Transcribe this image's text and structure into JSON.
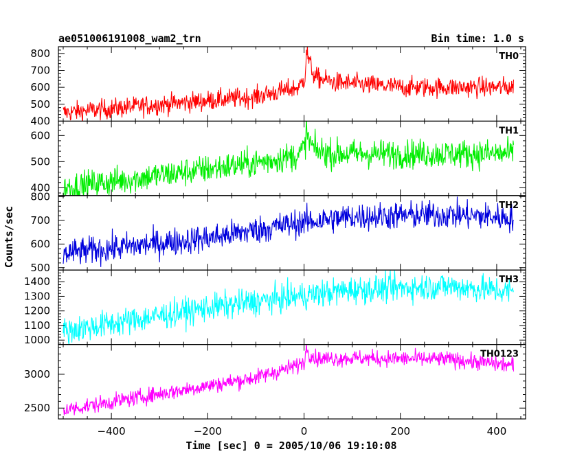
{
  "header": {
    "title": "ae051006191008_wam2_trn",
    "bin_time": "Bin time: 1.0 s"
  },
  "chart_data": {
    "type": "line",
    "xlabel": "Time [sec] 0 = 2005/10/06 19:10:08",
    "ylabel": "Counts/sec",
    "xlim": [
      -510,
      460
    ],
    "x_ticks": [
      -400,
      -200,
      0,
      200,
      400
    ],
    "x_range_data": [
      -500,
      435
    ],
    "panels": [
      {
        "name": "TH0",
        "color": "#ff0000",
        "ylim": [
          400,
          840
        ],
        "y_ticks": [
          400,
          500,
          600,
          700,
          800
        ],
        "profile": [
          [
            -500,
            450
          ],
          [
            -100,
            545
          ],
          [
            -10,
            600
          ],
          [
            2,
            660
          ],
          [
            5,
            820
          ],
          [
            10,
            760
          ],
          [
            22,
            660
          ],
          [
            60,
            630
          ],
          [
            200,
            600
          ],
          [
            435,
            600
          ]
        ],
        "noise": 30
      },
      {
        "name": "TH1",
        "color": "#00ee00",
        "ylim": [
          370,
          655
        ],
        "y_ticks": [
          400,
          500,
          600
        ],
        "profile": [
          [
            -500,
            400
          ],
          [
            -100,
            495
          ],
          [
            -10,
            525
          ],
          [
            2,
            560
          ],
          [
            5,
            620
          ],
          [
            10,
            580
          ],
          [
            22,
            545
          ],
          [
            60,
            530
          ],
          [
            200,
            530
          ],
          [
            435,
            530
          ]
        ],
        "noise": 28
      },
      {
        "name": "TH2",
        "color": "#0000dd",
        "ylim": [
          490,
          805
        ],
        "y_ticks": [
          500,
          600,
          700,
          800
        ],
        "profile": [
          [
            -500,
            560
          ],
          [
            -200,
            625
          ],
          [
            -10,
            690
          ],
          [
            100,
            715
          ],
          [
            300,
            725
          ],
          [
            435,
            710
          ]
        ],
        "noise": 30
      },
      {
        "name": "TH3",
        "color": "#00ffff",
        "ylim": [
          970,
          1480
        ],
        "y_ticks": [
          1000,
          1100,
          1200,
          1300,
          1400
        ],
        "profile": [
          [
            -500,
            1060
          ],
          [
            -200,
            1220
          ],
          [
            -10,
            1300
          ],
          [
            100,
            1345
          ],
          [
            300,
            1370
          ],
          [
            435,
            1330
          ]
        ],
        "noise": 48
      },
      {
        "name": "TH0123",
        "color": "#ff00ff",
        "ylim": [
          2340,
          3440
        ],
        "y_ticks": [
          2500,
          3000
        ],
        "profile": [
          [
            -500,
            2470
          ],
          [
            -100,
            2950
          ],
          [
            -10,
            3140
          ],
          [
            2,
            3200
          ],
          [
            5,
            3420
          ],
          [
            12,
            3300
          ],
          [
            25,
            3230
          ],
          [
            100,
            3240
          ],
          [
            300,
            3220
          ],
          [
            435,
            3130
          ]
        ],
        "noise": 60
      }
    ]
  }
}
